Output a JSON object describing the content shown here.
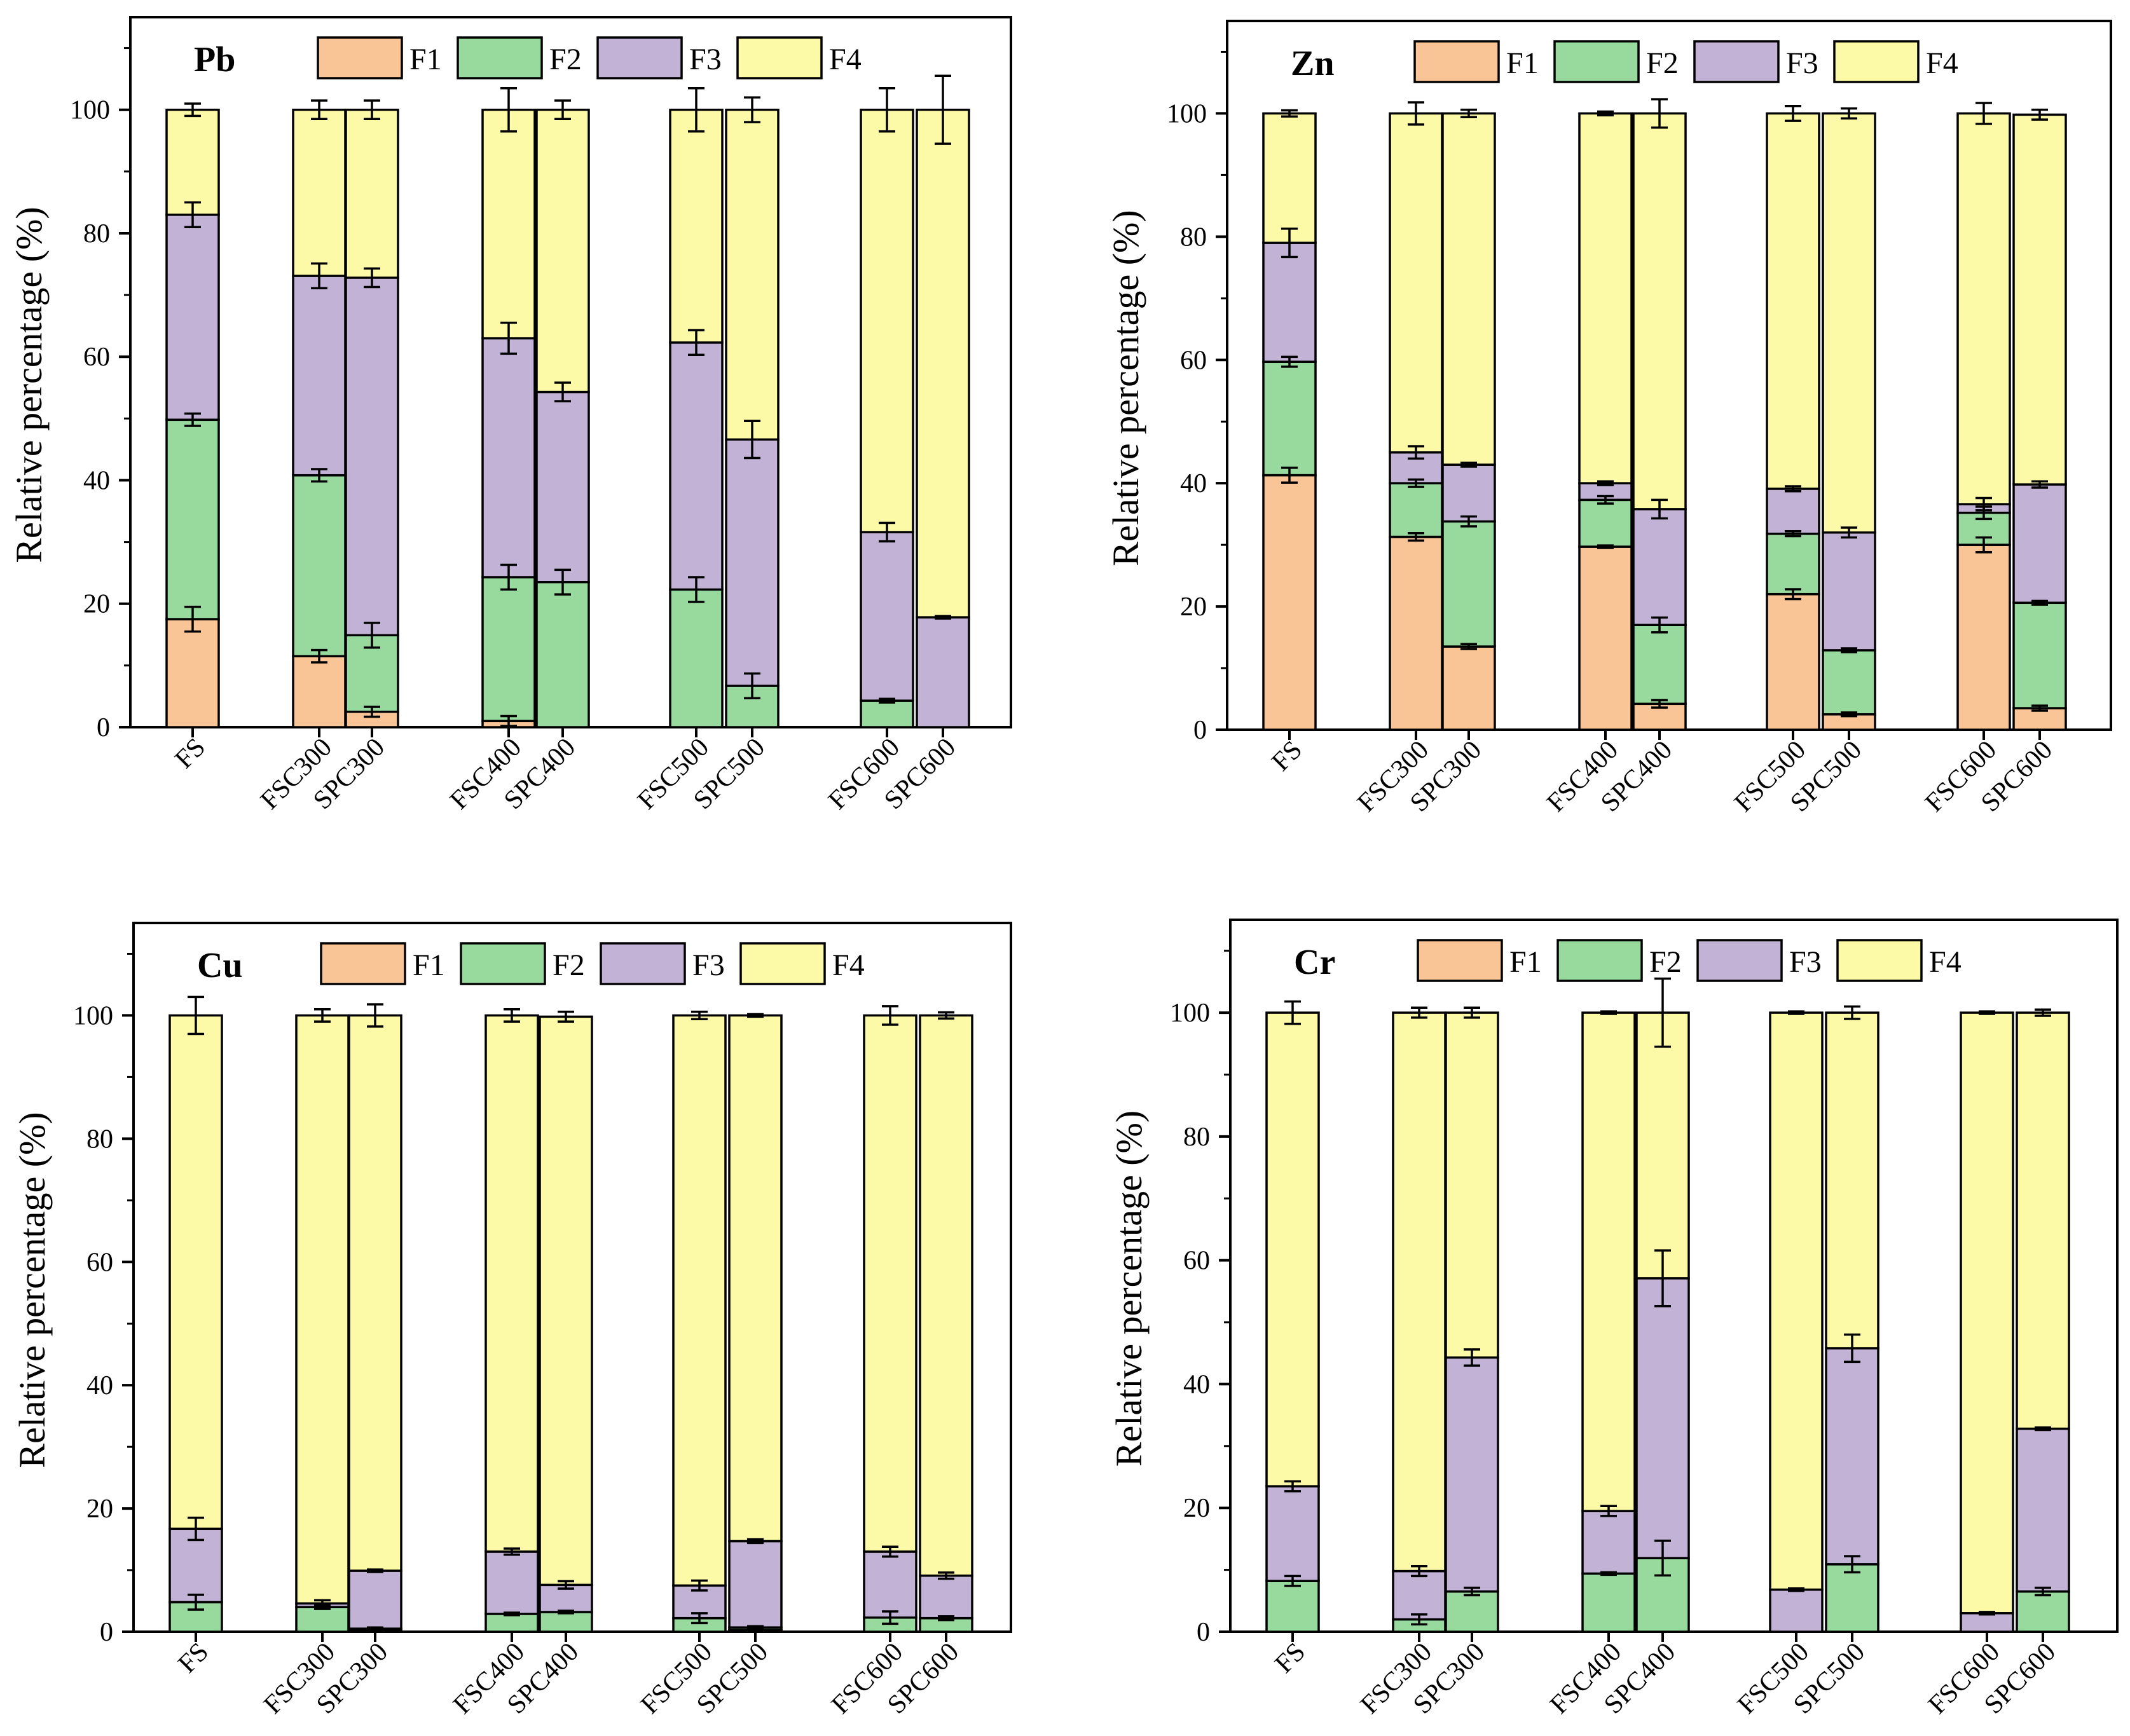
{
  "colors": {
    "F1": "#f9c597",
    "F2": "#98d99e",
    "F3": "#c2b2d6",
    "F4": "#fcfaa6",
    "axis": "#000000"
  },
  "legend": [
    "F1",
    "F2",
    "F3",
    "F4"
  ],
  "chart_data": [
    {
      "type": "bar",
      "stacked": true,
      "title": "Pb",
      "ylabel": "Relative percentage (%)",
      "xlabel": "",
      "ylim": [
        0,
        115
      ],
      "yticks": [
        0,
        20,
        40,
        60,
        80,
        100
      ],
      "categories": [
        "FS",
        "FSC300",
        "SPC300",
        "FSC400",
        "SPC400",
        "FSC500",
        "SPC500",
        "FSC600",
        "SPC600"
      ],
      "series": [
        {
          "name": "F1",
          "values": [
            17.5,
            11.5,
            2.5,
            1.0,
            0,
            0,
            0,
            0,
            0
          ],
          "errors": [
            2.0,
            1.0,
            0.8,
            0.8,
            0,
            0,
            0,
            0,
            0
          ]
        },
        {
          "name": "F2",
          "values": [
            32.3,
            29.3,
            12.4,
            23.3,
            23.5,
            22.3,
            6.7,
            4.3,
            0
          ],
          "errors": [
            1.0,
            1.0,
            2.0,
            2.0,
            2.0,
            2.0,
            2.0,
            0.3,
            0
          ]
        },
        {
          "name": "F3",
          "values": [
            33.2,
            32.3,
            57.9,
            38.7,
            30.8,
            40.0,
            39.9,
            27.3,
            17.8
          ],
          "errors": [
            2.0,
            2.0,
            1.5,
            2.5,
            1.5,
            2.0,
            3.0,
            1.5,
            0.2
          ]
        },
        {
          "name": "F4",
          "values": [
            17.0,
            26.9,
            27.2,
            37.0,
            45.7,
            37.7,
            53.4,
            68.4,
            82.2
          ],
          "errors": [
            1.0,
            1.5,
            1.5,
            3.5,
            1.5,
            3.5,
            2.0,
            3.5,
            5.5
          ]
        }
      ]
    },
    {
      "type": "bar",
      "stacked": true,
      "title": "Zn",
      "ylabel": "Relative percentage (%)",
      "xlabel": "",
      "ylim": [
        0,
        115
      ],
      "yticks": [
        0,
        20,
        40,
        60,
        80,
        100
      ],
      "categories": [
        "FS",
        "FSC300",
        "SPC300",
        "FSC400",
        "SPC400",
        "FSC500",
        "SPC500",
        "FSC600",
        "SPC600"
      ],
      "series": [
        {
          "name": "F1",
          "values": [
            41.3,
            31.3,
            13.5,
            29.7,
            4.2,
            22.0,
            2.5,
            30.0,
            3.5
          ],
          "errors": [
            1.2,
            0.6,
            0.4,
            0.2,
            0.6,
            0.8,
            0.3,
            1.2,
            0.4
          ]
        },
        {
          "name": "F2",
          "values": [
            18.4,
            8.7,
            20.3,
            7.6,
            12.8,
            9.8,
            10.4,
            5.2,
            17.1
          ],
          "errors": [
            0.8,
            0.6,
            0.8,
            0.6,
            1.2,
            0.4,
            0.3,
            1.0,
            0.3
          ]
        },
        {
          "name": "F3",
          "values": [
            19.3,
            5.0,
            9.2,
            2.7,
            18.8,
            7.3,
            19.1,
            1.4,
            19.2
          ],
          "errors": [
            2.3,
            1.0,
            0.3,
            0.3,
            1.5,
            0.4,
            0.8,
            1.0,
            0.5
          ]
        },
        {
          "name": "F4",
          "values": [
            21.0,
            55.0,
            57.0,
            60.0,
            64.2,
            60.9,
            68.0,
            63.4,
            60.0
          ],
          "errors": [
            0.5,
            1.8,
            0.6,
            0.3,
            2.3,
            1.2,
            0.8,
            1.7,
            0.8
          ]
        }
      ]
    },
    {
      "type": "bar",
      "stacked": true,
      "title": "Cu",
      "ylabel": "Relative percentage (%)",
      "xlabel": "",
      "ylim": [
        0,
        115
      ],
      "yticks": [
        0,
        20,
        40,
        60,
        80,
        100
      ],
      "categories": [
        "FS",
        "FSC300",
        "SPC300",
        "FSC400",
        "SPC400",
        "FSC500",
        "SPC500",
        "FSC600",
        "SPC600"
      ],
      "series": [
        {
          "name": "F1",
          "values": [
            0,
            0,
            0.3,
            0,
            0,
            0,
            0.3,
            0,
            0
          ],
          "errors": [
            0,
            0,
            0,
            0,
            0,
            0,
            0,
            0,
            0
          ]
        },
        {
          "name": "F2",
          "values": [
            4.8,
            4.0,
            0.2,
            2.9,
            3.2,
            2.2,
            0.4,
            2.3,
            2.2
          ],
          "errors": [
            1.2,
            0.3,
            0.2,
            0.2,
            0.2,
            0.8,
            0.2,
            1.0,
            0.3
          ]
        },
        {
          "name": "F3",
          "values": [
            11.9,
            0.6,
            9.4,
            10.1,
            4.4,
            5.3,
            14.0,
            10.7,
            6.9
          ],
          "errors": [
            1.8,
            0.5,
            0.2,
            0.5,
            0.6,
            0.8,
            0.3,
            0.8,
            0.5
          ]
        },
        {
          "name": "F4",
          "values": [
            83.3,
            95.4,
            90.1,
            87.0,
            92.2,
            92.5,
            85.3,
            87.0,
            90.9
          ],
          "errors": [
            3.0,
            1.0,
            1.8,
            1.0,
            0.8,
            0.6,
            0.2,
            1.5,
            0.5
          ]
        }
      ]
    },
    {
      "type": "bar",
      "stacked": true,
      "title": "Cr",
      "ylabel": "Relative percentage (%)",
      "xlabel": "",
      "ylim": [
        0,
        115
      ],
      "yticks": [
        0,
        20,
        40,
        60,
        80,
        100
      ],
      "categories": [
        "FS",
        "FSC300",
        "SPC300",
        "FSC400",
        "SPC400",
        "FSC500",
        "SPC500",
        "FSC600",
        "SPC600"
      ],
      "series": [
        {
          "name": "F1",
          "values": [
            0,
            0,
            0,
            0,
            0,
            0,
            0,
            0,
            0
          ],
          "errors": [
            0,
            0,
            0,
            0,
            0,
            0,
            0,
            0,
            0
          ]
        },
        {
          "name": "F2",
          "values": [
            8.2,
            2.0,
            6.5,
            9.4,
            11.9,
            0,
            10.9,
            0,
            6.5
          ],
          "errors": [
            0.8,
            0.8,
            0.6,
            0.2,
            2.8,
            0,
            1.3,
            0,
            0.6
          ]
        },
        {
          "name": "F3",
          "values": [
            15.3,
            7.8,
            37.8,
            10.1,
            45.2,
            6.8,
            34.9,
            3.0,
            26.3
          ],
          "errors": [
            0.8,
            0.8,
            1.3,
            0.8,
            4.5,
            0.2,
            2.2,
            0.2,
            0.2
          ]
        },
        {
          "name": "F4",
          "values": [
            76.5,
            90.2,
            55.7,
            80.5,
            42.9,
            93.2,
            54.2,
            97.0,
            67.2
          ],
          "errors": [
            1.8,
            0.8,
            0.8,
            0.2,
            5.5,
            0.2,
            1.0,
            0.2,
            0.5
          ]
        }
      ]
    }
  ]
}
